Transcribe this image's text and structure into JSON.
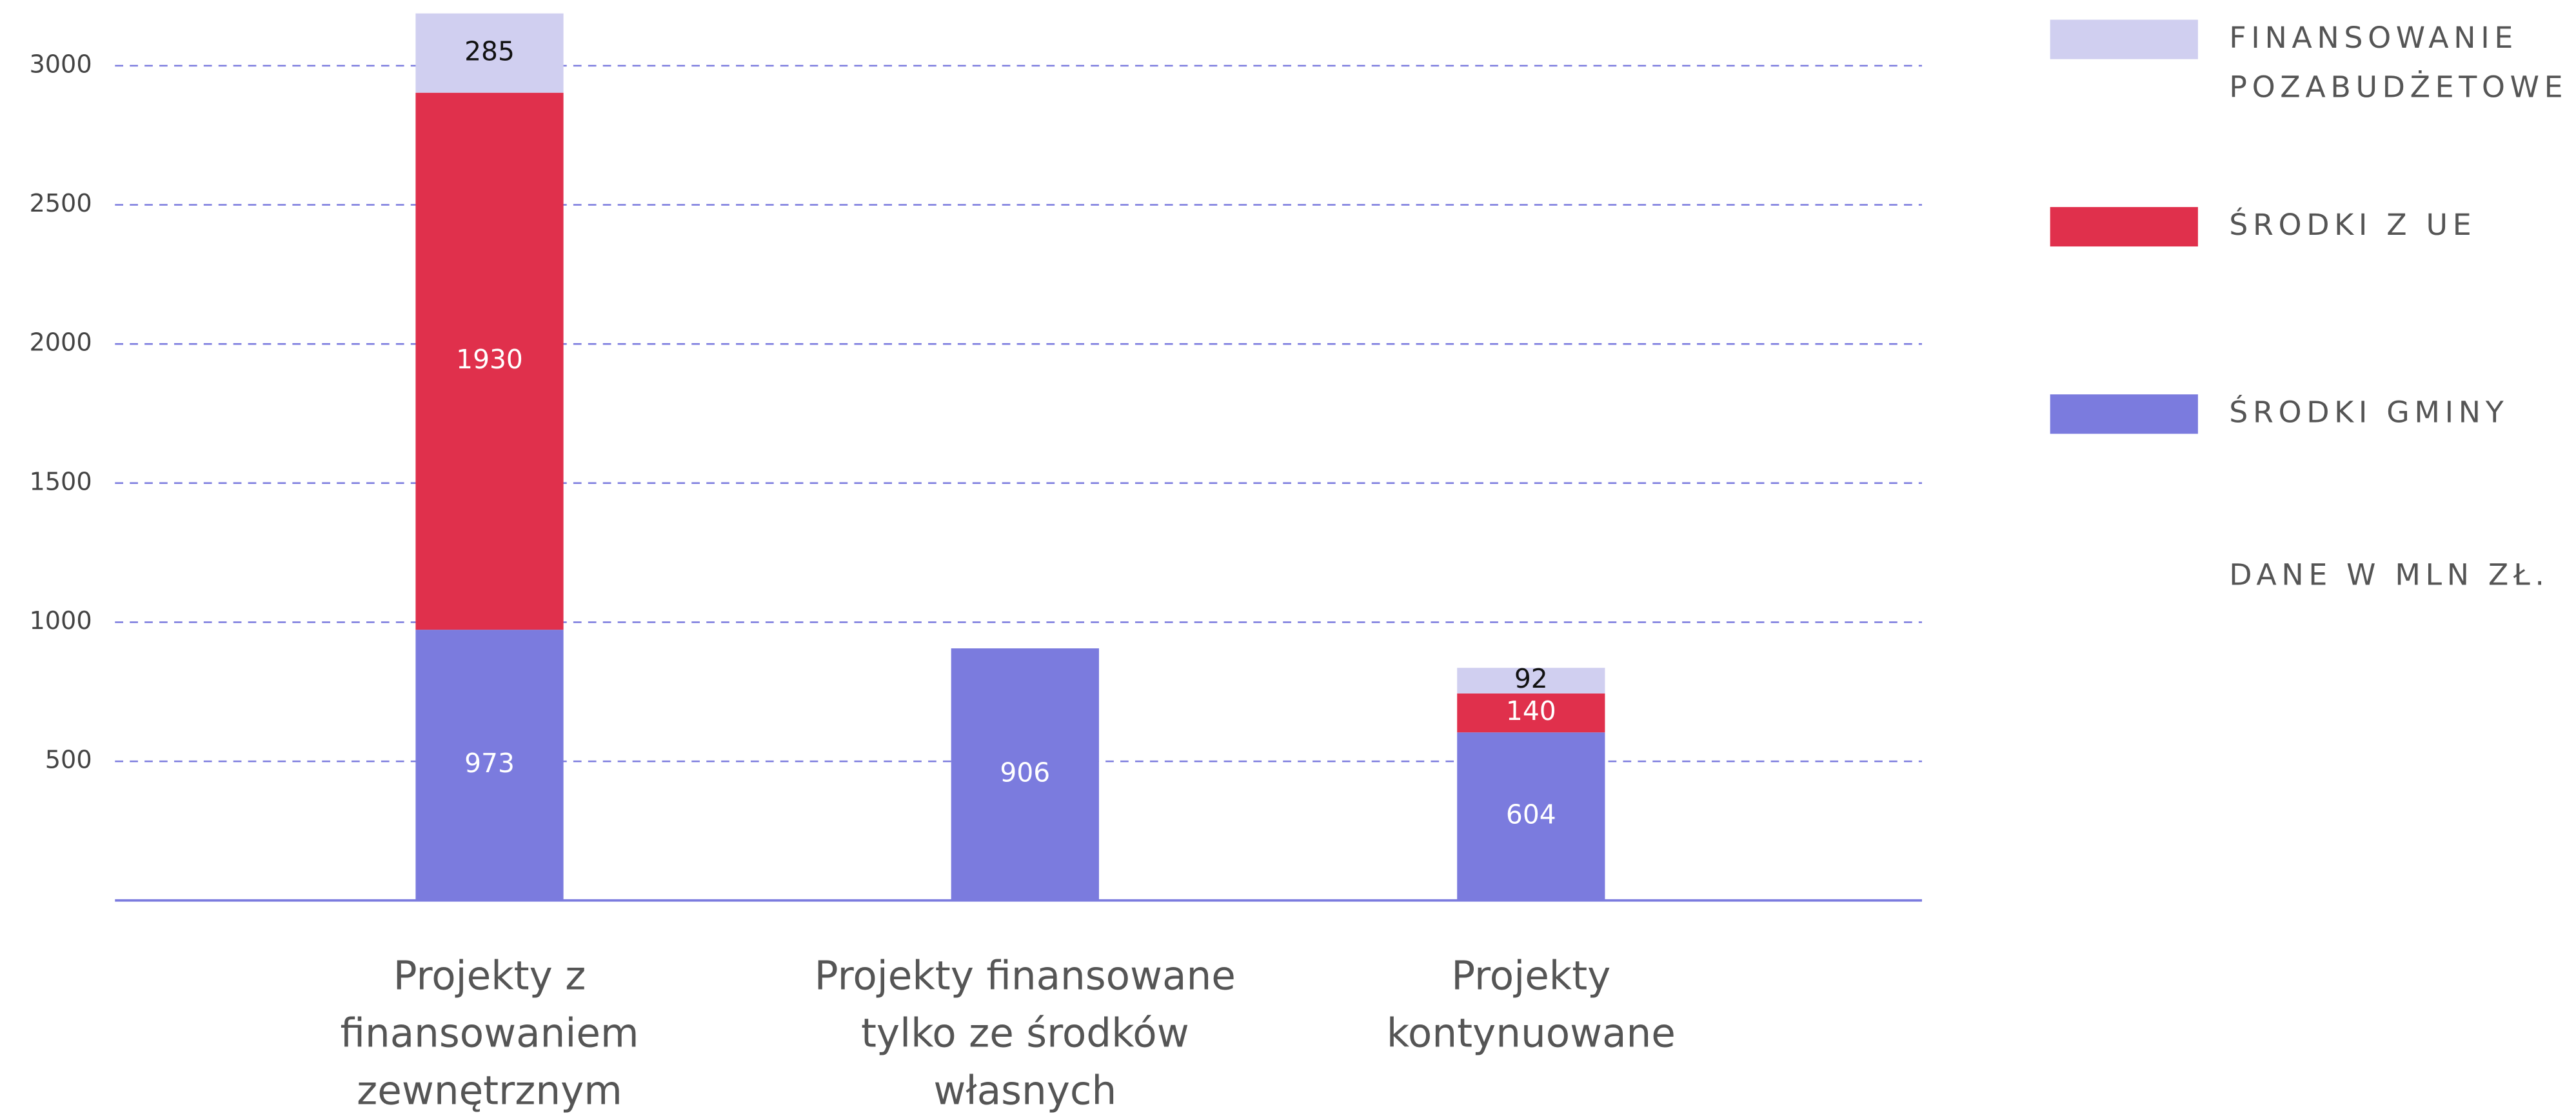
{
  "chart_data": {
    "type": "stacked_bar",
    "categories": [
      "Projekty z finansowaniem zewnętrznym",
      "Projekty finansowane tylko ze środków własnych",
      "Projekty kontynuowane"
    ],
    "series": [
      {
        "name": "ŚRODKI GMINY",
        "color": "#7b7bde",
        "values": [
          973,
          906,
          604
        ]
      },
      {
        "name": "ŚRODKI Z UE",
        "color": "#e0304c",
        "values": [
          1930,
          null,
          140
        ]
      },
      {
        "name": "FINANSOWANIE POZABUDŻETOWE",
        "color": "#d0cff0",
        "values": [
          285,
          null,
          92
        ]
      }
    ],
    "note": "DANE W MLN ZŁ.",
    "ylim": [
      0,
      3000
    ],
    "yticks": [
      500,
      1000,
      1500,
      2000,
      2500,
      3000
    ],
    "grid": true,
    "legend": "right"
  }
}
